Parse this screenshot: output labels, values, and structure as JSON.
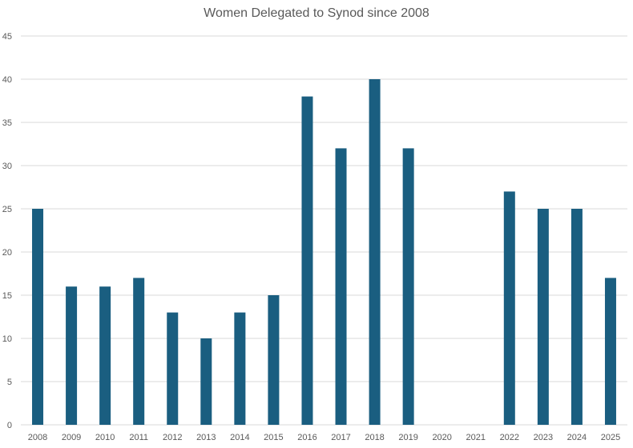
{
  "chart_data": {
    "type": "bar",
    "title": "Women Delegated to Synod since 2008",
    "xlabel": "",
    "ylabel": "",
    "categories": [
      "2008",
      "2009",
      "2010",
      "2011",
      "2012",
      "2013",
      "2014",
      "2015",
      "2016",
      "2017",
      "2018",
      "2019",
      "2020",
      "2021",
      "2022",
      "2023",
      "2024",
      "2025"
    ],
    "values": [
      25,
      16,
      16,
      17,
      13,
      10,
      13,
      15,
      38,
      32,
      40,
      32,
      0,
      0,
      27,
      25,
      25,
      17
    ],
    "ylim": [
      0,
      45
    ],
    "yticks": [
      0,
      5,
      10,
      15,
      20,
      25,
      30,
      35,
      40,
      45
    ],
    "grid": true,
    "legend": "none",
    "colors": {
      "bar": "#1a5e80",
      "grid": "#d9d9d9",
      "text": "#595959"
    }
  }
}
